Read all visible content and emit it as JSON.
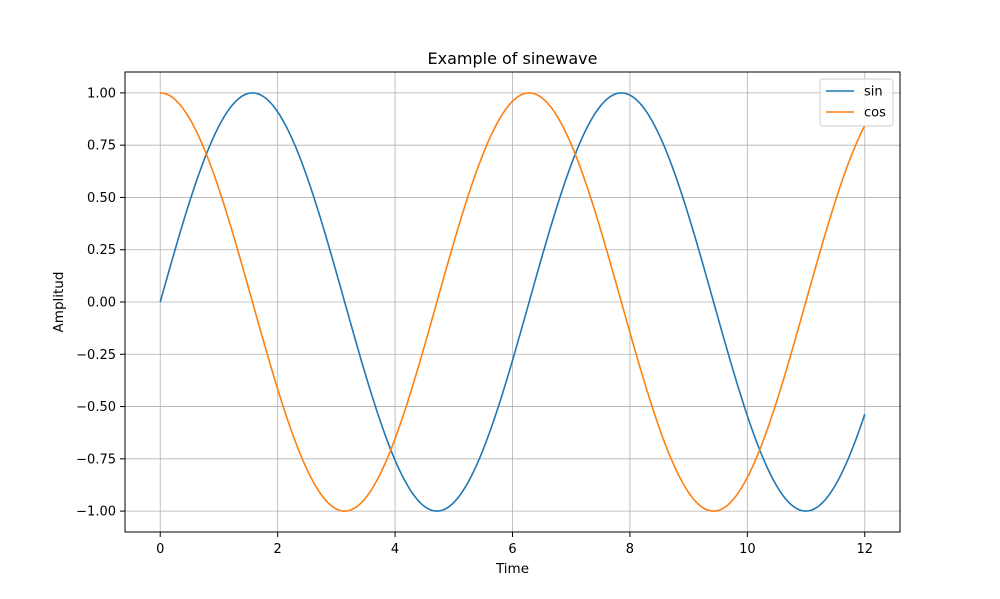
{
  "chart_data": {
    "type": "line",
    "title": "Example of sinewave",
    "xlabel": "Time",
    "ylabel": "Amplitud",
    "xlim": [
      -0.6,
      12.6
    ],
    "ylim": [
      -1.1,
      1.1
    ],
    "xticks": [
      0,
      2,
      4,
      6,
      8,
      10,
      12
    ],
    "xtick_labels": [
      "0",
      "2",
      "4",
      "6",
      "8",
      "10",
      "12"
    ],
    "yticks": [
      -1.0,
      -0.75,
      -0.5,
      -0.25,
      0.0,
      0.25,
      0.5,
      0.75,
      1.0
    ],
    "ytick_labels": [
      "−1.00",
      "−0.75",
      "−0.50",
      "−0.25",
      "0.00",
      "0.25",
      "0.50",
      "0.75",
      "1.00"
    ],
    "grid": true,
    "legend_position": "top-right",
    "x_range": [
      0,
      12
    ],
    "series": [
      {
        "name": "sin",
        "color": "#1f77b4",
        "x": [
          0,
          0.5,
          1,
          1.5,
          2,
          2.5,
          3,
          3.5,
          4,
          4.5,
          5,
          5.5,
          6,
          6.5,
          7,
          7.5,
          8,
          8.5,
          9,
          9.5,
          10,
          10.5,
          11,
          11.5,
          12
        ],
        "y": [
          0.0,
          0.479,
          0.841,
          0.997,
          0.909,
          0.598,
          0.141,
          -0.351,
          -0.757,
          -0.978,
          -0.959,
          -0.706,
          -0.279,
          0.215,
          0.657,
          0.938,
          0.989,
          0.798,
          0.412,
          -0.075,
          -0.544,
          -0.88,
          -1.0,
          -0.875,
          -0.537
        ]
      },
      {
        "name": "cos",
        "color": "#ff7f0e",
        "x": [
          0,
          0.5,
          1,
          1.5,
          2,
          2.5,
          3,
          3.5,
          4,
          4.5,
          5,
          5.5,
          6,
          6.5,
          7,
          7.5,
          8,
          8.5,
          9,
          9.5,
          10,
          10.5,
          11,
          11.5,
          12
        ],
        "y": [
          1.0,
          0.878,
          0.54,
          0.071,
          -0.416,
          -0.801,
          -0.99,
          -0.936,
          -0.654,
          -0.211,
          0.284,
          0.709,
          0.96,
          0.977,
          0.754,
          0.347,
          -0.146,
          -0.602,
          -0.911,
          -0.997,
          -0.839,
          -0.476,
          0.004,
          0.483,
          0.844
        ]
      }
    ]
  }
}
